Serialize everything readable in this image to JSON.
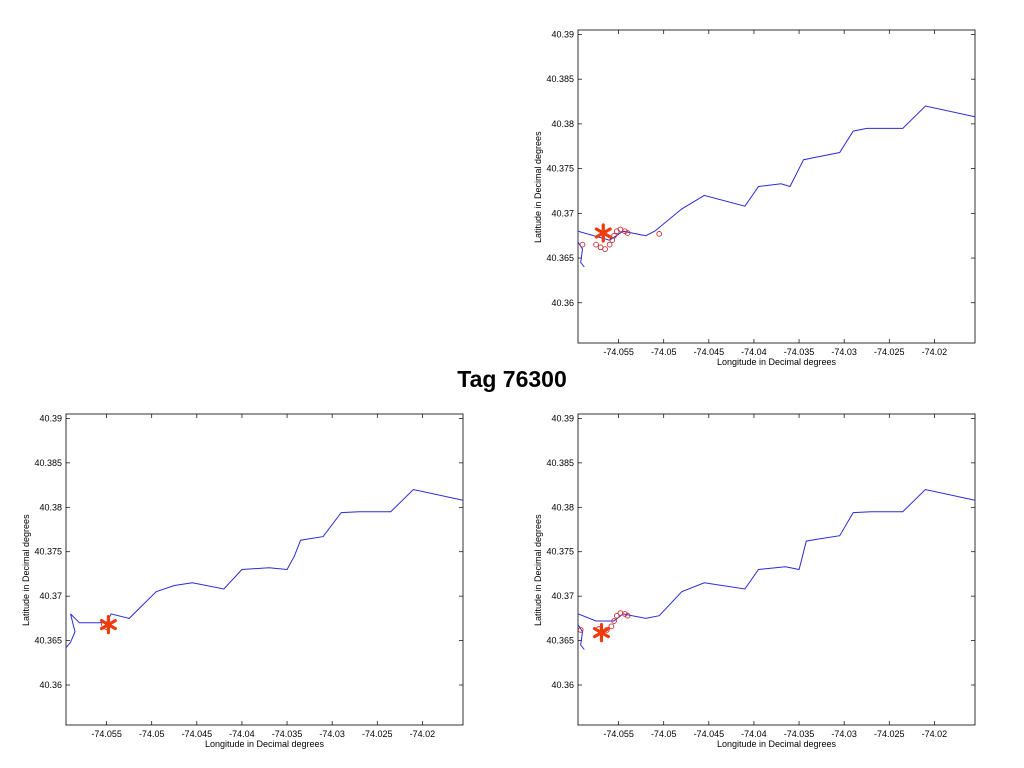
{
  "title": "Tag 76300",
  "colors": {
    "track": "#2b2bd6",
    "marker": "#f03a0a",
    "points": "#c8303a",
    "axes": "#000000"
  },
  "chart_data": [
    {
      "type": "line",
      "position_word": "top-right",
      "xlabel": "Longitude in Decimal degrees",
      "ylabel": "Latitude in Decimal degrees",
      "xlim": [
        -74.0595,
        -74.0155
      ],
      "ylim": [
        40.3555,
        40.3905
      ],
      "xticks": [
        -74.055,
        -74.05,
        -74.045,
        -74.04,
        -74.035,
        -74.03,
        -74.025,
        -74.02
      ],
      "xtick_labels": [
        "-74.055",
        "-74.05",
        "-74.045",
        "-74.04",
        "-74.035",
        "-74.03",
        "-74.025",
        "-74.02"
      ],
      "yticks": [
        40.36,
        40.365,
        40.37,
        40.375,
        40.38,
        40.385,
        40.39
      ],
      "ytick_labels": [
        "40.36",
        "40.365",
        "40.37",
        "40.375",
        "40.38",
        "40.385",
        "40.39"
      ],
      "grid": false,
      "track": [
        [
          -74.0595,
          40.368
        ],
        [
          -74.056,
          40.367
        ],
        [
          -74.0545,
          40.368
        ],
        [
          -74.052,
          40.3675
        ],
        [
          -74.051,
          40.368
        ],
        [
          -74.048,
          40.3705
        ],
        [
          -74.0455,
          40.372
        ],
        [
          -74.041,
          40.3708
        ],
        [
          -74.0395,
          40.373
        ],
        [
          -74.037,
          40.3733
        ],
        [
          -74.036,
          40.373
        ],
        [
          -74.0345,
          40.376
        ],
        [
          -74.033,
          40.3763
        ],
        [
          -74.0305,
          40.3768
        ],
        [
          -74.029,
          40.3792
        ],
        [
          -74.0275,
          40.3795
        ],
        [
          -74.0235,
          40.3795
        ],
        [
          -74.021,
          40.382
        ],
        [
          -74.0155,
          40.3808
        ]
      ],
      "spur": [
        [
          -74.0595,
          40.3668
        ],
        [
          -74.059,
          40.366
        ],
        [
          -74.0592,
          40.3645
        ],
        [
          -74.0588,
          40.364
        ]
      ],
      "points": [
        [
          -74.0575,
          40.3665
        ],
        [
          -74.057,
          40.3662
        ],
        [
          -74.0565,
          40.366
        ],
        [
          -74.056,
          40.3665
        ],
        [
          -74.0557,
          40.367
        ],
        [
          -74.0555,
          40.3675
        ],
        [
          -74.0552,
          40.368
        ],
        [
          -74.0548,
          40.3682
        ],
        [
          -74.0543,
          40.368
        ],
        [
          -74.054,
          40.3678
        ],
        [
          -74.0505,
          40.3677
        ],
        [
          -74.059,
          40.3665
        ]
      ],
      "marker": [
        -74.0567,
        40.3678
      ]
    },
    {
      "type": "line",
      "position_word": "bottom-left",
      "xlabel": "Longitude in Decimal degrees",
      "ylabel": "Latitude in Decimal degrees",
      "xlim": [
        -74.0595,
        -74.0155
      ],
      "ylim": [
        40.3555,
        40.3905
      ],
      "xticks": [
        -74.055,
        -74.05,
        -74.045,
        -74.04,
        -74.035,
        -74.03,
        -74.025,
        -74.02
      ],
      "xtick_labels": [
        "-74.055",
        "-74.05",
        "-74.045",
        "-74.04",
        "-74.035",
        "-74.03",
        "-74.025",
        "-74.02"
      ],
      "yticks": [
        40.36,
        40.365,
        40.37,
        40.375,
        40.38,
        40.385,
        40.39
      ],
      "ytick_labels": [
        "40.36",
        "40.365",
        "40.37",
        "40.375",
        "40.38",
        "40.385",
        "40.39"
      ],
      "grid": false,
      "track": [
        [
          -74.059,
          40.368
        ],
        [
          -74.058,
          40.367
        ],
        [
          -74.055,
          40.367
        ],
        [
          -74.0545,
          40.368
        ],
        [
          -74.0525,
          40.3675
        ],
        [
          -74.051,
          40.369
        ],
        [
          -74.0495,
          40.3705
        ],
        [
          -74.0475,
          40.3712
        ],
        [
          -74.0455,
          40.3715
        ],
        [
          -74.042,
          40.3708
        ],
        [
          -74.04,
          40.373
        ],
        [
          -74.037,
          40.3732
        ],
        [
          -74.035,
          40.373
        ],
        [
          -74.0342,
          40.3745
        ],
        [
          -74.0335,
          40.3763
        ],
        [
          -74.031,
          40.3767
        ],
        [
          -74.029,
          40.3794
        ],
        [
          -74.027,
          40.3795
        ],
        [
          -74.0235,
          40.3795
        ],
        [
          -74.021,
          40.382
        ],
        [
          -74.0155,
          40.3808
        ]
      ],
      "spur": [
        [
          -74.059,
          40.368
        ],
        [
          -74.0585,
          40.366
        ],
        [
          -74.059,
          40.3648
        ],
        [
          -74.0595,
          40.3642
        ]
      ],
      "points": [
        [
          -74.055,
          40.3665
        ],
        [
          -74.0553,
          40.3668
        ]
      ],
      "marker": [
        -74.0548,
        40.3668
      ]
    },
    {
      "type": "line",
      "position_word": "bottom-right",
      "xlabel": "Longitude in Decimal degrees",
      "ylabel": "Latitude in Decimal degrees",
      "xlim": [
        -74.0595,
        -74.0155
      ],
      "ylim": [
        40.3555,
        40.3905
      ],
      "xticks": [
        -74.055,
        -74.05,
        -74.045,
        -74.04,
        -74.035,
        -74.03,
        -74.025,
        -74.02
      ],
      "xtick_labels": [
        "-74.055",
        "-74.05",
        "-74.045",
        "-74.04",
        "-74.035",
        "-74.03",
        "-74.025",
        "-74.02"
      ],
      "yticks": [
        40.36,
        40.365,
        40.37,
        40.375,
        40.38,
        40.385,
        40.39
      ],
      "ytick_labels": [
        "40.36",
        "40.365",
        "40.37",
        "40.375",
        "40.38",
        "40.385",
        "40.39"
      ],
      "grid": false,
      "track": [
        [
          -74.0595,
          40.368
        ],
        [
          -74.0575,
          40.3672
        ],
        [
          -74.0555,
          40.3672
        ],
        [
          -74.0545,
          40.368
        ],
        [
          -74.052,
          40.3675
        ],
        [
          -74.0505,
          40.3678
        ],
        [
          -74.048,
          40.3705
        ],
        [
          -74.0455,
          40.3715
        ],
        [
          -74.041,
          40.3708
        ],
        [
          -74.0395,
          40.373
        ],
        [
          -74.0365,
          40.3733
        ],
        [
          -74.035,
          40.373
        ],
        [
          -74.0342,
          40.3762
        ],
        [
          -74.033,
          40.3764
        ],
        [
          -74.0305,
          40.3768
        ],
        [
          -74.029,
          40.3794
        ],
        [
          -74.027,
          40.3795
        ],
        [
          -74.0235,
          40.3795
        ],
        [
          -74.021,
          40.382
        ],
        [
          -74.0155,
          40.3808
        ]
      ],
      "spur": [
        [
          -74.0595,
          40.3668
        ],
        [
          -74.059,
          40.366
        ],
        [
          -74.0592,
          40.3645
        ],
        [
          -74.0588,
          40.364
        ]
      ],
      "points": [
        [
          -74.0572,
          40.3663
        ],
        [
          -74.0568,
          40.366
        ],
        [
          -74.0563,
          40.3662
        ],
        [
          -74.0558,
          40.3666
        ],
        [
          -74.0555,
          40.3672
        ],
        [
          -74.0552,
          40.3678
        ],
        [
          -74.0548,
          40.3681
        ],
        [
          -74.0543,
          40.368
        ],
        [
          -74.054,
          40.3678
        ],
        [
          -74.0592,
          40.3662
        ]
      ],
      "marker": [
        -74.0569,
        40.3659
      ]
    }
  ]
}
